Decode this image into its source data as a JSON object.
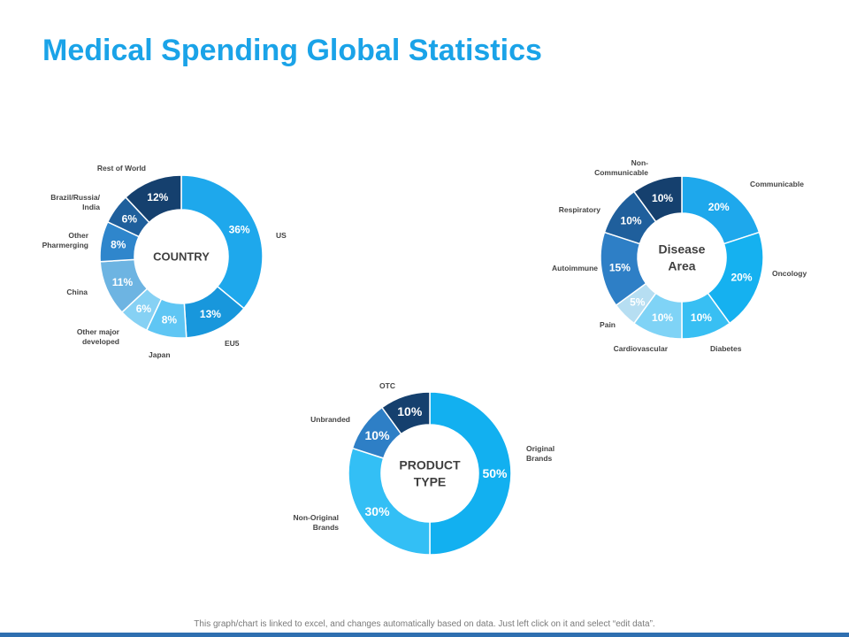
{
  "title": "Medical Spending Global Statistics",
  "footer_note": "This graph/chart is linked to excel, and changes automatically based on data. Just left click on it and select “edit data”.",
  "chart_data": [
    {
      "type": "pie",
      "variant": "donut",
      "center_label": [
        "COUNTRY"
      ],
      "categories": [
        "US",
        "EU5",
        "Japan",
        "Other major developed",
        "China",
        "Other Pharmerging",
        "Brazil/Russia/ India",
        "Rest of World"
      ],
      "category_lines": [
        [
          "US"
        ],
        [
          "EU5"
        ],
        [
          "Japan"
        ],
        [
          "Other major",
          "developed"
        ],
        [
          "China"
        ],
        [
          "Other",
          "Pharmerging"
        ],
        [
          "Brazil/Russia/",
          "India"
        ],
        [
          "Rest of World"
        ]
      ],
      "values": [
        36,
        13,
        8,
        6,
        11,
        8,
        6,
        12
      ],
      "value_labels": [
        "36%",
        "13%",
        "8%",
        "6%",
        "11%",
        "8%",
        "6%",
        "12%"
      ],
      "colors": [
        "#1ea8ec",
        "#1897dc",
        "#5fc6f4",
        "#86d1f4",
        "#6db4e2",
        "#2f86cc",
        "#1f5f9c",
        "#15406e"
      ]
    },
    {
      "type": "pie",
      "variant": "donut",
      "center_label": [
        "Disease",
        "Area"
      ],
      "categories": [
        "Communicable",
        "Oncology",
        "Diabetes",
        "Cardiovascular",
        "Pain",
        "Autoimmune",
        "Respiratory",
        "Non- Communicable"
      ],
      "category_lines": [
        [
          "Communicable"
        ],
        [
          "Oncology"
        ],
        [
          "Diabetes"
        ],
        [
          "Cardiovascular"
        ],
        [
          "Pain"
        ],
        [
          "Autoimmune"
        ],
        [
          "Respiratory"
        ],
        [
          "Non-",
          "Communicable"
        ]
      ],
      "values": [
        20,
        20,
        10,
        10,
        5,
        15,
        10,
        10
      ],
      "value_labels": [
        "20%",
        "20%",
        "10%",
        "10%",
        "5%",
        "15%",
        "10%",
        "10%"
      ],
      "colors": [
        "#1ea8ec",
        "#15b1f0",
        "#38bff3",
        "#7fd3f6",
        "#b6def2",
        "#2e7fc6",
        "#1f5f9c",
        "#15406e"
      ]
    },
    {
      "type": "pie",
      "variant": "donut",
      "center_label": [
        "PRODUCT",
        "TYPE"
      ],
      "categories": [
        "Original Brands",
        "Non-Original Brands",
        "Unbranded",
        "OTC"
      ],
      "category_lines": [
        [
          "Original",
          "Brands"
        ],
        [
          "Non-Original",
          "Brands"
        ],
        [
          "Unbranded"
        ],
        [
          "OTC"
        ]
      ],
      "values": [
        50,
        30,
        10,
        10
      ],
      "value_labels": [
        "50%",
        "30%",
        "10%",
        "10%"
      ],
      "colors": [
        "#12b0f0",
        "#33bff5",
        "#2e7fc6",
        "#15406e"
      ]
    }
  ]
}
